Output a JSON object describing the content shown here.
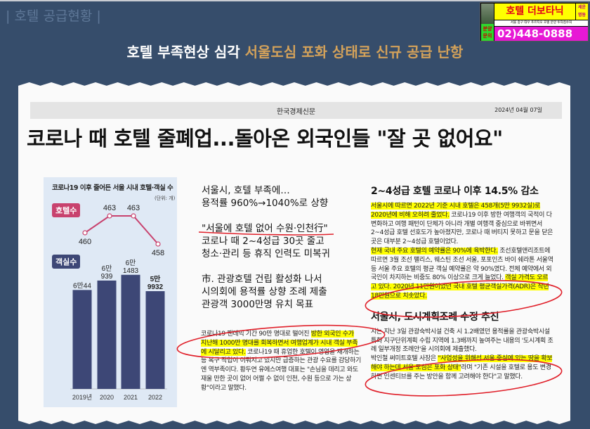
{
  "slide": {
    "section_title": "| 호텔 공급현황 |",
    "subtitle_plain": "호텔 부족현상 심각 ",
    "subtitle_highlight": "서울도심 포화 상태로 신규 공급 난항",
    "subtitle_highlight_color": "#d4a25a",
    "background_color": "#364d6b"
  },
  "ad": {
    "name": "호텔 더보타닉",
    "location": "세운 명동",
    "badge": "분양 문의",
    "address": "서울 중구 대우 푸르지오 호텔 분양 투자접수처",
    "phone": "02)448-0888"
  },
  "article": {
    "newspaper": "한국경제신문",
    "date": "2024년 04월 07일",
    "headline": "코로나 때 호텔 줄폐업...돌아온 외국인들 \"잘 곳 없어요\"",
    "middle": {
      "sub1_l1": "서울시, 호텔 부족에…",
      "sub1_l2": "용적률 960%→1040%로 상향",
      "sub2_l1": "\"서울에 호텔 없어 수원·인천行\"",
      "sub2_l2": "코로나 때 2~4성급 30곳 줄고",
      "sub2_l3": "청소·관리 등 휴직 인력도 미복귀",
      "sub3_l1": "市. 관광호텔 건립 활성화 나서",
      "sub3_l2": "시의회에 용적률 상향 조례 제출",
      "sub3_l3": "관광객 3000만명 유치 목표",
      "body_a": "코로나19 팬데믹 기간 90만 명대로 떨어진 ",
      "body_hl": "방한 외국인 수가 지난해 1000만 명대를 회복하면서 여행업계가 시내 객실 부족에 시달리고 있다.",
      "body_b": " 코로나19 때 휴업한 호텔이 영업을 재개하는 등 복구 작업이 이뤄지고 있지만 급증하는 관광 수요를 감당하기엔 역부족이다. 황두연 유에스여행 대표는 \"손님을 데리고 와도 재울 만한 곳이 없어 어쩔 수 없이 인천, 수원 등으로 가는 상황\"이라고 말했다."
    },
    "right": {
      "head1": "2~4성급 호텔 코로나 이후 14.5% 감소",
      "p1_hl": "서울시에 따르면 2022년 기준 시내 호텔은 458개(5만 9932실)로 2020년에 비해 오히려 줄었다.",
      "p1_b": " 코로나19 이후 방한 여행객의 국적이 다변화하고 여행 패턴이 단체가 아니라 개별 여행객 중심으로 바뀌면서 2~4성급 호텔 선호도가 높아졌지만, 코로나 때 버티지 못하고 문을 닫은 곳은 대부분 2~4성급 호텔이었다.",
      "p2_hl": "현재 국내 주요 호텔의 예약률은 90%에 육박한다.",
      "p2_b": " 조선호텔앤리조트에 따르면 3월 조선 팰리스, 웨스틴 조선 서울, 포포인츠 바이 쉐라톤 서울역 등 서울 주요 호텔의 평균 객실 예약률은 약 90%였다. 전체 예약에서 외국인이 차지하는 비중도 80% 이상으로 크게 늘었다. ",
      "p2_hl2": "객실 가격도 오르고 있다. 2020년 11만원이었던 국내 호텔 평균객실가격(ADR)은 작년 18만원으로 치솟았다.",
      "head2": "서울시, 도시계획조례 수정 추진",
      "p3": "시는 지난 3일 관광숙박시설 건축 시 1.2배였던 용적률을 관광숙박시설 특화 지구단위계획 수립 지역에 1.3배까지 높여주는 내용의 '도시계획 조례 일부개정 조례안'을 시의회에 제출했다.",
      "p4_a": "박인철 써미트호텔 사장은 ",
      "p4_hl": "\"사업성을 위해선 서울 중심에 있는 땅을 확보해야 하는데 서울 도심은 포화 상태\"",
      "p4_b": "라며 \"기존 시설을 호텔로 용도 변경하면 인센티브를 주는 방안을 함께 고려해야 한다\"고 말했다."
    }
  },
  "chart_data": {
    "type": "bar+line",
    "title": "코로나19 이후 줄어든 서울 시내 호텔·객실 수",
    "unit": "(단위: 개)",
    "categories": [
      "2019년",
      "2020",
      "2021",
      "2022"
    ],
    "series": [
      {
        "name": "호텔수",
        "type": "line",
        "values": [
          460,
          463,
          463,
          458
        ],
        "labels": [
          "460",
          "463",
          "463",
          "458"
        ],
        "color": "#c8426e"
      },
      {
        "name": "객실수",
        "type": "bar",
        "values": [
          60044,
          60939,
          61483,
          59932
        ],
        "labels_top": [
          "",
          "6만",
          "6만",
          "5만"
        ],
        "labels_bottom": [
          "6만44",
          "939",
          "1483",
          "9932"
        ],
        "color": "#3d4776"
      }
    ]
  }
}
